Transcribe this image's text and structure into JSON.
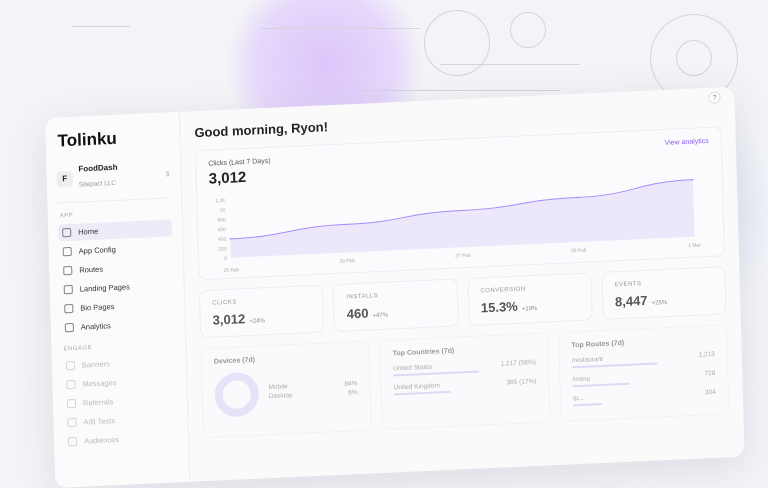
{
  "brand": "Tolinku",
  "org": {
    "initial": "F",
    "name": "FoodDash",
    "company": "Sitepact LLC"
  },
  "sidebar": {
    "app_label": "APP",
    "engage_label": "ENGAGE",
    "items": [
      {
        "label": "Home",
        "icon": "home-icon"
      },
      {
        "label": "App Config",
        "icon": "gear-icon"
      },
      {
        "label": "Routes",
        "icon": "link-icon"
      },
      {
        "label": "Landing Pages",
        "icon": "pen-icon"
      },
      {
        "label": "Bio Pages",
        "icon": "user-icon"
      },
      {
        "label": "Analytics",
        "icon": "bar-chart-icon"
      }
    ],
    "engage": [
      {
        "label": "Banners",
        "icon": "megaphone-icon"
      },
      {
        "label": "Messages",
        "icon": "chat-icon"
      },
      {
        "label": "Referrals",
        "icon": "gift-icon"
      },
      {
        "label": "A/B Tests",
        "icon": "flask-icon"
      },
      {
        "label": "Audiences",
        "icon": "users-icon"
      }
    ]
  },
  "greeting": "Good morning, Ryon!",
  "help": "?",
  "clicks_card": {
    "title": "Clicks (Last 7 Days)",
    "value": "3,012",
    "link": "View analytics"
  },
  "chart_data": {
    "type": "area",
    "categories": [
      "25 Feb",
      "26 Feb",
      "27 Feb",
      "28 Feb",
      "1 Mar"
    ],
    "values": [
      390,
      580,
      760,
      920,
      1180
    ],
    "yticks": [
      "0",
      "200",
      "400",
      "600",
      "800",
      "1K",
      "1.2K"
    ],
    "ylim": [
      0,
      1200
    ],
    "color": "#a78bfa"
  },
  "stats": [
    {
      "label": "CLICKS",
      "value": "3,012",
      "delta": "+24%"
    },
    {
      "label": "INSTALLS",
      "value": "460",
      "delta": "+47%"
    },
    {
      "label": "CONVERSION",
      "value": "15.3%",
      "delta": "+19%"
    },
    {
      "label": "EVENTS",
      "value": "8,447",
      "delta": "+25%"
    }
  ],
  "devices": {
    "title": "Devices (7d)",
    "rows": [
      {
        "label": "Mobile",
        "value": "84%"
      },
      {
        "label": "Desktop",
        "value": "6%"
      }
    ]
  },
  "countries": {
    "title": "Top Countries (7d)",
    "rows": [
      {
        "label": "United States",
        "value": "1,217 (56%)"
      },
      {
        "label": "United Kingdom",
        "value": "365 (17%)"
      }
    ]
  },
  "routes": {
    "title": "Top Routes (7d)",
    "rows": [
      {
        "label": "/restaurant",
        "value": "1,213"
      },
      {
        "label": "/menu",
        "value": "728"
      },
      {
        "label": "/p...",
        "value": "304"
      }
    ]
  }
}
